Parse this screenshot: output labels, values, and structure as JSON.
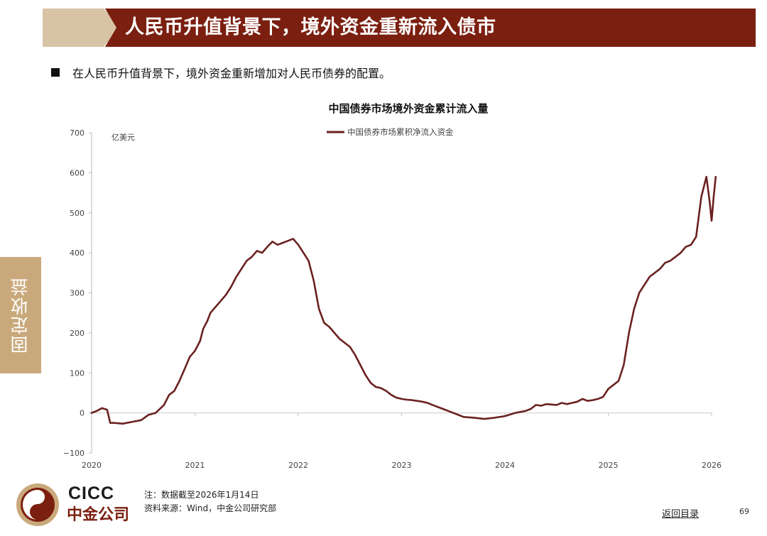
{
  "header": {
    "title": "人民币升值背景下，境外资金重新流入债市"
  },
  "bullet": {
    "text": "在人民币升值背景下，境外资金重新增加对人民币债券的配置。"
  },
  "side_tab": {
    "label": "固定收益"
  },
  "footer": {
    "logo_en": "CICC",
    "logo_cn": "中金公司",
    "note": "注：数据截至2026年1月14日",
    "source": "资料来源：Wind，中金公司研究部",
    "back_link": "返回目录",
    "page_number": "69"
  },
  "colors": {
    "header_red": "#7b1f10",
    "header_tan": "#d8c3a5",
    "side_tab": "#c9a97b",
    "series_line": "#6b2121"
  },
  "chart_data": {
    "type": "line",
    "title": "中国债券市场境外资金累计流入量",
    "unit": "亿美元",
    "ylim": [
      -100,
      700
    ],
    "yticks": [
      -100,
      0,
      100,
      200,
      300,
      400,
      500,
      600,
      700
    ],
    "ytick_labels": [
      "−100",
      "0",
      "100",
      "200",
      "300",
      "400",
      "500",
      "600",
      "700"
    ],
    "xlim": [
      2020.0,
      2026.0
    ],
    "xticks": [
      "2020",
      "2021",
      "2022",
      "2023",
      "2024",
      "2025",
      "2026"
    ],
    "grid": false,
    "legend": "top-center",
    "series": [
      {
        "name": "中国债券市场累积净流入资金",
        "color": "#6b2121",
        "x": [
          2020.0,
          2020.05,
          2020.1,
          2020.15,
          2020.18,
          2020.22,
          2020.3,
          2020.4,
          2020.48,
          2020.55,
          2020.62,
          2020.7,
          2020.75,
          2020.8,
          2020.85,
          2020.9,
          2020.95,
          2021.0,
          2021.05,
          2021.08,
          2021.12,
          2021.15,
          2021.2,
          2021.25,
          2021.3,
          2021.35,
          2021.4,
          2021.45,
          2021.5,
          2021.55,
          2021.6,
          2021.65,
          2021.7,
          2021.75,
          2021.8,
          2021.85,
          2021.9,
          2021.95,
          2022.0,
          2022.05,
          2022.1,
          2022.15,
          2022.2,
          2022.25,
          2022.3,
          2022.35,
          2022.4,
          2022.45,
          2022.5,
          2022.55,
          2022.6,
          2022.65,
          2022.7,
          2022.75,
          2022.8,
          2022.85,
          2022.9,
          2022.95,
          2023.0,
          2023.05,
          2023.1,
          2023.15,
          2023.2,
          2023.25,
          2023.3,
          2023.4,
          2023.5,
          2023.6,
          2023.7,
          2023.8,
          2023.9,
          2024.0,
          2024.1,
          2024.2,
          2024.25,
          2024.3,
          2024.35,
          2024.4,
          2024.5,
          2024.55,
          2024.6,
          2024.65,
          2024.7,
          2024.75,
          2024.8,
          2024.85,
          2024.9,
          2024.95,
          2025.0,
          2025.05,
          2025.1,
          2025.15,
          2025.2,
          2025.25,
          2025.3,
          2025.35,
          2025.4,
          2025.45,
          2025.5,
          2025.55,
          2025.6,
          2025.65,
          2025.7,
          2025.75,
          2025.8,
          2025.85,
          2025.9,
          2025.95,
          2025.98,
          2026.0,
          2026.02,
          2026.04
        ],
        "values": [
          0,
          5,
          12,
          8,
          -25,
          -25,
          -27,
          -22,
          -18,
          -5,
          0,
          20,
          45,
          55,
          80,
          110,
          140,
          155,
          180,
          210,
          230,
          250,
          265,
          280,
          295,
          315,
          340,
          360,
          380,
          390,
          405,
          400,
          415,
          428,
          420,
          425,
          430,
          435,
          420,
          400,
          380,
          330,
          260,
          225,
          215,
          200,
          185,
          175,
          165,
          145,
          120,
          95,
          75,
          65,
          62,
          55,
          45,
          38,
          35,
          33,
          32,
          30,
          28,
          25,
          20,
          10,
          0,
          -10,
          -12,
          -15,
          -12,
          -8,
          0,
          5,
          10,
          20,
          18,
          22,
          20,
          25,
          22,
          25,
          28,
          35,
          30,
          32,
          35,
          40,
          60,
          70,
          80,
          120,
          200,
          260,
          300,
          320,
          340,
          350,
          360,
          375,
          380,
          390,
          400,
          415,
          420,
          440,
          540,
          590,
          530,
          480,
          540,
          590
        ]
      }
    ]
  }
}
